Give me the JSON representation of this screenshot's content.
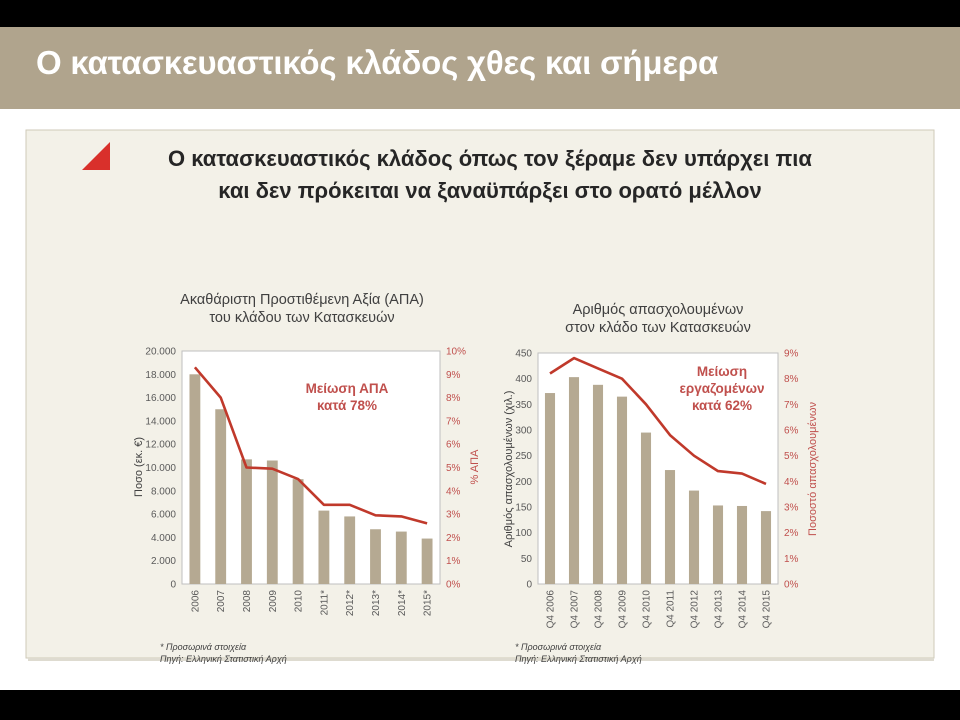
{
  "slide": {
    "title": "Ο κατασκευαστικός κλάδος χθες και σήμερα",
    "subtitle_lines": [
      "Ο κατασκευαστικός κλάδος όπως τον ξέραμε δεν υπάρχει πια",
      "και δεν πρόκειται να ξαναϋπάρξει στο ορατό μέλλον"
    ],
    "colors": {
      "band": "#b0a48d",
      "panel": "#f3f1e8",
      "bar": "#b5a992",
      "line": "#c0392b",
      "accent": "#d9302b"
    }
  },
  "chart_data": [
    {
      "type": "bar",
      "title_lines": [
        "Ακαθάριστη Προστιθέμενη Αξία (ΑΠΑ)",
        "του κλάδου των Κατασκευών"
      ],
      "categories": [
        "2006",
        "2007",
        "2008",
        "2009",
        "2010",
        "2011*",
        "2012*",
        "2013*",
        "2014*",
        "2015*"
      ],
      "series": [
        {
          "name": "",
          "kind": "bar",
          "axis": "left",
          "values": [
            18000,
            15000,
            10700,
            10600,
            9000,
            6300,
            5800,
            4700,
            4500,
            3900
          ]
        },
        {
          "name": "",
          "kind": "line",
          "axis": "right",
          "values": [
            9.3,
            8.0,
            5.0,
            4.95,
            4.5,
            3.4,
            3.4,
            2.95,
            2.9,
            2.6
          ]
        }
      ],
      "ylabel": "Ποσο (εκ. €)",
      "y2label": "% ΑΠΑ",
      "ylim": [
        0,
        20000
      ],
      "y_ticks": [
        "0",
        "2.000",
        "4.000",
        "6.000",
        "8.000",
        "10.000",
        "12.000",
        "14.000",
        "16.000",
        "18.000",
        "20.000"
      ],
      "y2lim": [
        0,
        10
      ],
      "y2_ticks": [
        "0%",
        "1%",
        "2%",
        "3%",
        "4%",
        "5%",
        "6%",
        "7%",
        "8%",
        "9%",
        "10%"
      ],
      "annotation_lines": [
        "Μείωση ΑΠΑ",
        "κατά 78%"
      ],
      "notes": [
        "* Προσωρινά στοιχεία",
        "Πηγή:  Ελληνική Στατιστική Αρχή"
      ],
      "grid": false
    },
    {
      "type": "bar",
      "title_lines": [
        "Αριθμός απασχολουμένων",
        "στον κλάδο των Κατασκευών"
      ],
      "categories": [
        "Q4 2006",
        "Q4 2007",
        "Q4 2008",
        "Q4 2009",
        "Q4 2010",
        "Q4 2011",
        "Q4 2012",
        "Q4 2013",
        "Q4 2014",
        "Q4 2015"
      ],
      "series": [
        {
          "name": "",
          "kind": "bar",
          "axis": "left",
          "values": [
            372,
            403,
            388,
            365,
            295,
            222,
            182,
            153,
            152,
            142
          ]
        },
        {
          "name": "",
          "kind": "line",
          "axis": "right",
          "values": [
            8.2,
            8.8,
            8.4,
            8.0,
            7.0,
            5.8,
            5.0,
            4.4,
            4.3,
            3.9
          ]
        }
      ],
      "ylabel": "Αριθμός απασχολουμένων (χιλ.)",
      "y2label": "Ποσοστό απασχολουμένων",
      "ylim": [
        0,
        450
      ],
      "y_ticks": [
        "0",
        "50",
        "100",
        "150",
        "200",
        "250",
        "300",
        "350",
        "400",
        "450"
      ],
      "y2lim": [
        0,
        9
      ],
      "y2_ticks": [
        "0%",
        "1%",
        "2%",
        "3%",
        "4%",
        "5%",
        "6%",
        "7%",
        "8%",
        "9%"
      ],
      "annotation_lines": [
        "Μείωση",
        "εργαζομένων",
        "κατά 62%"
      ],
      "notes": [
        "* Προσωρινά στοιχεία",
        "Πηγή:  Ελληνική Στατιστική Αρχή"
      ],
      "grid": false
    }
  ]
}
